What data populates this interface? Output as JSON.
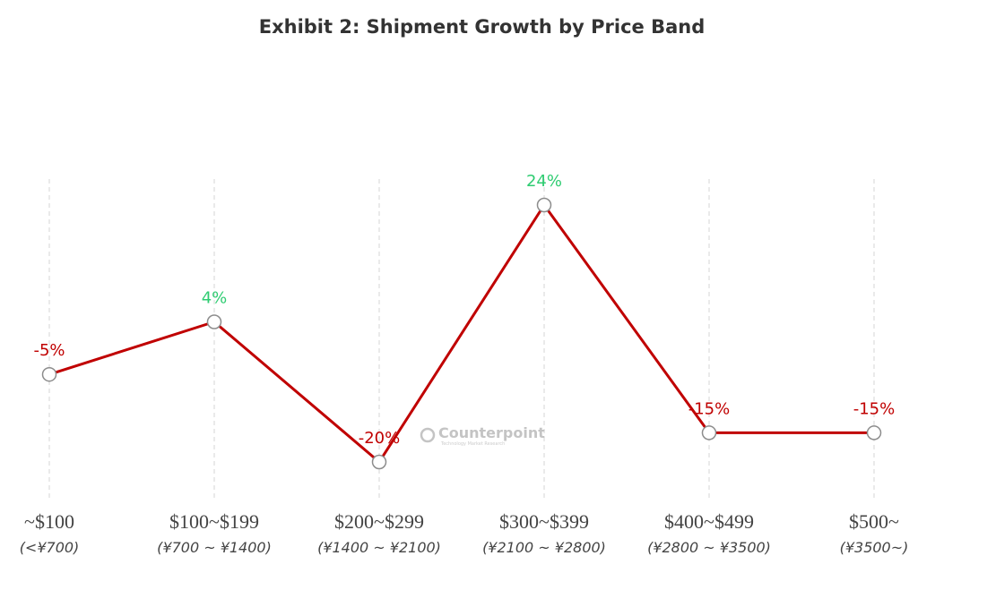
{
  "chart_data": {
    "type": "line",
    "title": "Exhibit 2: Shipment Growth by Price Band",
    "categories": [
      "~$100",
      "$100~$199",
      "$200~$299",
      "$300~$399",
      "$400~$499",
      "$500~"
    ],
    "sub_categories": [
      "(<¥700)",
      "(¥700 ~ ¥1400)",
      "(¥1400 ~ ¥2100)",
      "(¥2100 ~ ¥2800)",
      "(¥2800 ~ ¥3500)",
      "(¥3500~)"
    ],
    "series": [
      {
        "values": [
          -5,
          4,
          -20,
          24,
          -15,
          -15
        ]
      }
    ],
    "data_labels": [
      "-5%",
      "4%",
      "-20%",
      "24%",
      "-15%",
      "-15%"
    ],
    "ylim": [
      -25,
      25
    ],
    "grid": "vertical dashed",
    "line_color": "#c00000",
    "positive_label_color": "#2ecc71",
    "negative_label_color": "#c00000",
    "watermark": {
      "brand": "Counterpoint",
      "tagline": "Technology Market Research"
    }
  }
}
